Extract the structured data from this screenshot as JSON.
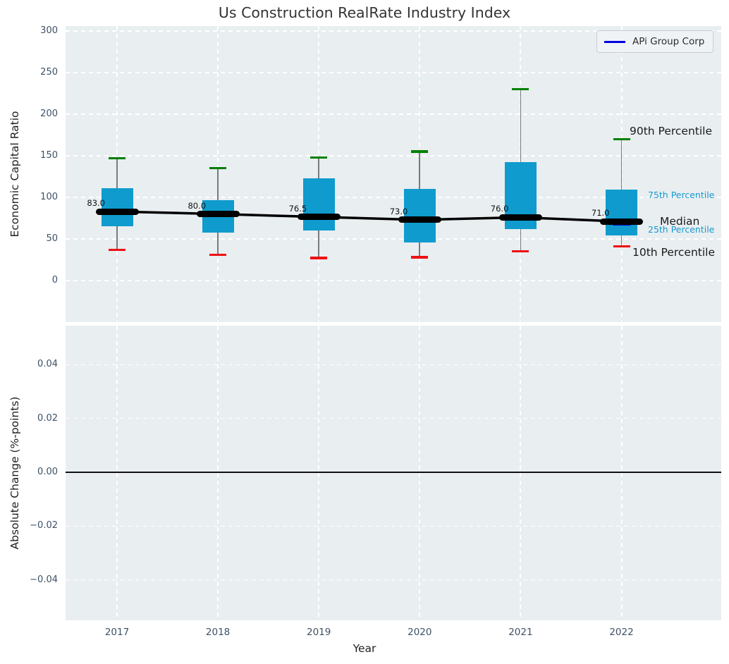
{
  "title": "Us Construction RealRate Industry Index",
  "xlabel": "Year",
  "legend": {
    "label": "APi Group Corp"
  },
  "colors": {
    "plot_bg": "#e9eef1",
    "grid": "#ffffff",
    "box_fill": "#0f9bcd",
    "cap_90": "#008000",
    "cap_10": "#ee1111",
    "median": "#000000",
    "company": "#0000dd",
    "percentile_label": "#1699cf",
    "tick_text": "#3d5166"
  },
  "annotations": {
    "p90": "90th Percentile",
    "p75": "75th Percentile",
    "median": "Median",
    "p25": "25th Percentile",
    "p10": "10th Percentile"
  },
  "chart_data": [
    {
      "type": "box",
      "title": "Us Construction RealRate Industry Index",
      "xlabel": "Year",
      "ylabel": "Economic Capital Ratio",
      "categories": [
        "2017",
        "2018",
        "2019",
        "2020",
        "2021",
        "2022"
      ],
      "ylim": [
        -50,
        306
      ],
      "yticks": [
        {
          "v": 300,
          "label": "300"
        },
        {
          "v": 250,
          "label": "250"
        },
        {
          "v": 200,
          "label": "200"
        },
        {
          "v": 150,
          "label": "150"
        },
        {
          "v": 100,
          "label": "100"
        },
        {
          "v": 50,
          "label": "50"
        },
        {
          "v": 0,
          "label": "0"
        }
      ],
      "grid": true,
      "legend_position": "upper right",
      "series": [
        {
          "name": "10th Percentile",
          "values": [
            37,
            31,
            27,
            28,
            35,
            41
          ]
        },
        {
          "name": "25th Percentile",
          "values": [
            65,
            58,
            60,
            46,
            62,
            54
          ]
        },
        {
          "name": "Median",
          "values": [
            83,
            80,
            76.5,
            73,
            76,
            71
          ]
        },
        {
          "name": "75th Percentile",
          "values": [
            111,
            97,
            123,
            110,
            142,
            109
          ]
        },
        {
          "name": "90th Percentile",
          "values": [
            147,
            135,
            148,
            155,
            230,
            170
          ]
        }
      ],
      "median_labels": [
        "83.0",
        "80.0",
        "76.5",
        "73.0",
        "76.0",
        "71.0"
      ],
      "company_point": {
        "name": "APi Group Corp",
        "year": "2022",
        "value": 69
      }
    },
    {
      "type": "line",
      "ylabel": "Absolute Change (%-points)",
      "categories": [
        "2017",
        "2018",
        "2019",
        "2020",
        "2021",
        "2022"
      ],
      "ylim": [
        -0.055,
        0.0545
      ],
      "yticks": [
        {
          "v": 0.04,
          "label": "0.04"
        },
        {
          "v": 0.02,
          "label": "0.02"
        },
        {
          "v": 0.0,
          "label": "0.00"
        },
        {
          "v": -0.02,
          "label": "−0.02"
        },
        {
          "v": -0.04,
          "label": "−0.04"
        }
      ],
      "grid": true,
      "series": [],
      "zero_line": 0.0
    }
  ]
}
